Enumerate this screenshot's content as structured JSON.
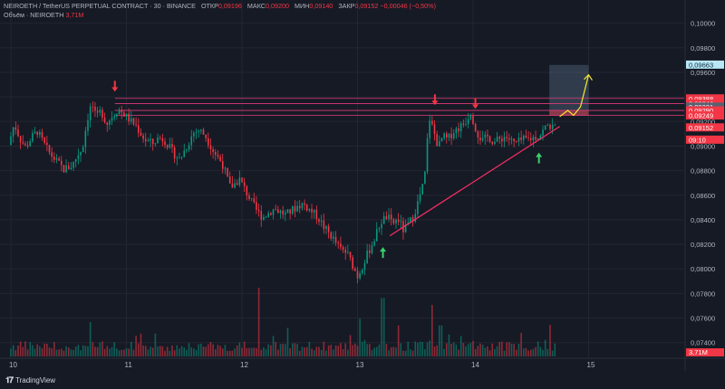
{
  "header": {
    "symbol": "NEIROETH / TetherUS PERPETUAL CONTRACT · 30 · BINANCE",
    "open_label": "ОТКР",
    "open": "0,09196",
    "high_label": "МАКС",
    "high": "0,09200",
    "low_label": "МИН",
    "low": "0,09140",
    "close_label": "ЗАКР",
    "close": "0,09152",
    "change": "−0,00046 (−0,50%)",
    "volume_label": "Объём · NEIROETH",
    "volume_value": "3,71M"
  },
  "footer": {
    "brand": "TradingView"
  },
  "colors": {
    "background": "#161a25",
    "up": "#089981",
    "down": "#f23645",
    "grid": "#232632",
    "hline": "#e03a78",
    "projection": "#f7e633",
    "trendline": "#ff2e63"
  },
  "chart_data": {
    "type": "candlestick",
    "price_axis": {
      "ticks": [
        0.1,
        0.098,
        0.096,
        0.094,
        0.092,
        0.09,
        0.088,
        0.086,
        0.084,
        0.082,
        0.08,
        0.078,
        0.076,
        0.074
      ],
      "tick_labels": [
        "0,10000",
        "0,09800",
        "0,09600",
        "0,09400",
        "0,09200",
        "0,09000",
        "0,08800",
        "0,08600",
        "0,08400",
        "0,08200",
        "0,08000",
        "0,07800",
        "0,07600",
        "0,07400"
      ],
      "ylim": [
        0.0728,
        0.1013
      ]
    },
    "time_axis": {
      "ticks": [
        "10",
        "11",
        "12",
        "13",
        "14",
        "15"
      ],
      "day_index": [
        0,
        1,
        2,
        3,
        4,
        5
      ]
    },
    "candles_day_range": [
      0.0,
      4.72
    ],
    "anchor_prices": [
      [
        0.0,
        0.0901
      ],
      [
        0.05,
        0.0918
      ],
      [
        0.1,
        0.0906
      ],
      [
        0.15,
        0.0899
      ],
      [
        0.2,
        0.0907
      ],
      [
        0.25,
        0.0912
      ],
      [
        0.3,
        0.0903
      ],
      [
        0.35,
        0.0895
      ],
      [
        0.42,
        0.0887
      ],
      [
        0.48,
        0.0881
      ],
      [
        0.55,
        0.0884
      ],
      [
        0.6,
        0.0893
      ],
      [
        0.64,
        0.0898
      ],
      [
        0.68,
        0.0921
      ],
      [
        0.72,
        0.0935
      ],
      [
        0.76,
        0.0922
      ],
      [
        0.8,
        0.0929
      ],
      [
        0.85,
        0.0918
      ],
      [
        0.9,
        0.0925
      ],
      [
        0.95,
        0.093
      ],
      [
        1.0,
        0.0926
      ],
      [
        1.05,
        0.0921
      ],
      [
        1.1,
        0.0917
      ],
      [
        1.18,
        0.0905
      ],
      [
        1.25,
        0.0902
      ],
      [
        1.3,
        0.0907
      ],
      [
        1.35,
        0.0905
      ],
      [
        1.42,
        0.0895
      ],
      [
        1.48,
        0.0889
      ],
      [
        1.55,
        0.0901
      ],
      [
        1.6,
        0.0911
      ],
      [
        1.65,
        0.0913
      ],
      [
        1.7,
        0.0909
      ],
      [
        1.78,
        0.0895
      ],
      [
        1.85,
        0.0886
      ],
      [
        1.92,
        0.0866
      ],
      [
        2.0,
        0.0873
      ],
      [
        2.05,
        0.0864
      ],
      [
        2.1,
        0.0855
      ],
      [
        2.15,
        0.0847
      ],
      [
        2.2,
        0.0842
      ],
      [
        2.3,
        0.0849
      ],
      [
        2.4,
        0.0844
      ],
      [
        2.5,
        0.0851
      ],
      [
        2.55,
        0.0853
      ],
      [
        2.62,
        0.0847
      ],
      [
        2.68,
        0.0842
      ],
      [
        2.73,
        0.0834
      ],
      [
        2.8,
        0.0826
      ],
      [
        2.87,
        0.0816
      ],
      [
        2.93,
        0.0813
      ],
      [
        2.97,
        0.0805
      ],
      [
        3.02,
        0.0794
      ],
      [
        3.07,
        0.0804
      ],
      [
        3.12,
        0.0815
      ],
      [
        3.17,
        0.0825
      ],
      [
        3.22,
        0.0838
      ],
      [
        3.28,
        0.0843
      ],
      [
        3.32,
        0.0836
      ],
      [
        3.37,
        0.0841
      ],
      [
        3.42,
        0.0831
      ],
      [
        3.45,
        0.0835
      ],
      [
        3.5,
        0.0842
      ],
      [
        3.55,
        0.0856
      ],
      [
        3.6,
        0.0872
      ],
      [
        3.64,
        0.0924
      ],
      [
        3.68,
        0.0912
      ],
      [
        3.72,
        0.0899
      ],
      [
        3.76,
        0.0908
      ],
      [
        3.8,
        0.0905
      ],
      [
        3.85,
        0.0912
      ],
      [
        3.9,
        0.0915
      ],
      [
        3.95,
        0.0919
      ],
      [
        4.0,
        0.0928
      ],
      [
        4.05,
        0.0912
      ],
      [
        4.1,
        0.0904
      ],
      [
        4.15,
        0.0908
      ],
      [
        4.2,
        0.0903
      ],
      [
        4.3,
        0.0908
      ],
      [
        4.38,
        0.0902
      ],
      [
        4.45,
        0.0905
      ],
      [
        4.52,
        0.0906
      ],
      [
        4.6,
        0.0909
      ],
      [
        4.66,
        0.0917
      ],
      [
        4.72,
        0.0915
      ]
    ],
    "volume_spikes": [
      [
        0.68,
        0.5
      ],
      [
        2.15,
        1.0
      ],
      [
        3.02,
        0.55
      ],
      [
        3.22,
        0.85
      ],
      [
        3.36,
        0.45
      ],
      [
        3.64,
        0.75
      ],
      [
        3.72,
        0.45
      ],
      [
        1.08,
        0.3
      ]
    ],
    "horizontal_levels": [
      0.09388,
      0.09346,
      0.0929,
      0.09249
    ],
    "trendline": [
      [
        3.28,
        0.0827
      ],
      [
        4.75,
        0.0916
      ]
    ],
    "projection_path": [
      [
        4.75,
        0.0924
      ],
      [
        4.82,
        0.0929
      ],
      [
        4.87,
        0.0925
      ],
      [
        4.93,
        0.0932
      ],
      [
        5.0,
        0.0958
      ]
    ],
    "target_box": {
      "x": [
        4.66,
        5.0
      ],
      "y": [
        0.0925,
        0.0966
      ]
    },
    "down_arrows": [
      [
        0.9,
        0.0945
      ],
      [
        3.67,
        0.0934
      ],
      [
        4.02,
        0.0931
      ]
    ],
    "up_arrows": [
      [
        3.22,
        0.0817
      ],
      [
        4.57,
        0.0894
      ]
    ],
    "price_labels": [
      {
        "text": "0,09663",
        "price": 0.09663,
        "bg": "#b8e7f6",
        "fg": "#0b2a3a"
      },
      {
        "text": "0,09388",
        "price": 0.09388,
        "bg": "#f23645",
        "fg": "#ffffff"
      },
      {
        "text": "0,09346",
        "price": 0.09346,
        "bg": "#f23645",
        "fg": "#ffffff"
      },
      {
        "text": "0,09321",
        "price": 0.09321,
        "bg": "#5a6170",
        "fg": "#ffffff"
      },
      {
        "text": "0,09290",
        "price": 0.0929,
        "bg": "#f23645",
        "fg": "#ffffff"
      },
      {
        "text": "0,09249",
        "price": 0.09249,
        "bg": "#f23645",
        "fg": "#ffffff"
      },
      {
        "text": "0,09152",
        "price": 0.09152,
        "bg": "#f23645",
        "fg": "#ffffff"
      },
      {
        "text": "09:10",
        "price": 0.09052,
        "bg": "#f23645",
        "fg": "#ffffff"
      }
    ],
    "volume_axis_label": {
      "text": "3,71M",
      "bg": "#f23645",
      "fg": "#ffffff"
    }
  }
}
